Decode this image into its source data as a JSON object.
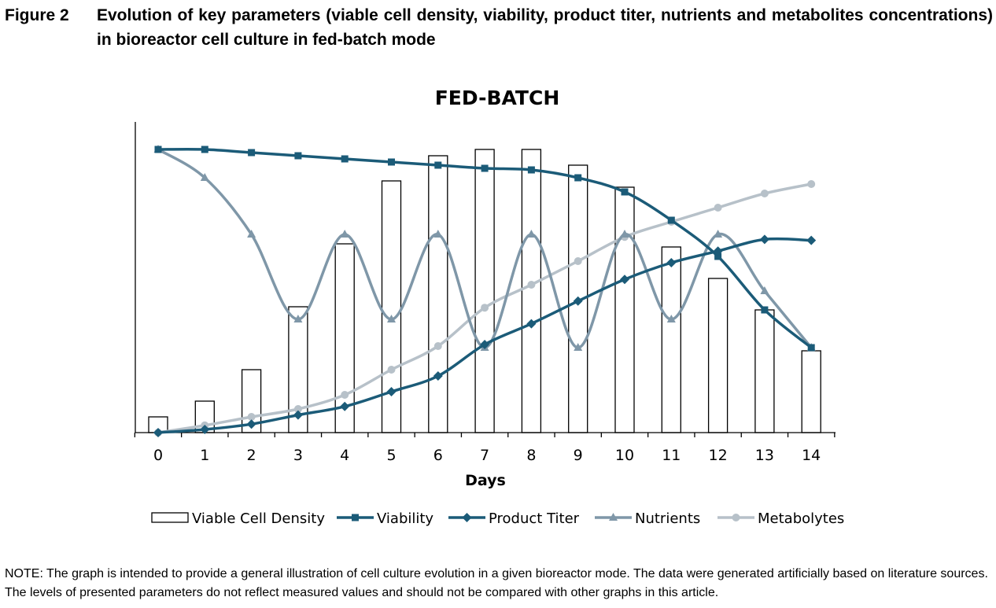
{
  "figure": {
    "label": "Figure 2",
    "caption": "Evolution of key parameters (viable cell density, viability, product titer, nutrients and metabolites concentrations) in bioreactor cell culture in fed-batch mode"
  },
  "note": "NOTE: The graph is intended to provide a general illustration of cell culture evolution in a given bioreactor mode. The data were generated artificially based on literature sources. The levels of presented parameters do not reflect measured values and should not be compared with other graphs in this article.",
  "chart_data": {
    "type": "bar+line",
    "title": "FED-BATCH",
    "xlabel": "Days",
    "ylabel": "",
    "categories": [
      "0",
      "1",
      "2",
      "3",
      "4",
      "5",
      "6",
      "7",
      "8",
      "9",
      "10",
      "11",
      "12",
      "13",
      "14"
    ],
    "ylim": [
      0,
      100
    ],
    "grid": false,
    "legend_position": "bottom",
    "series": [
      {
        "name": "Viable Cell Density",
        "type": "bar",
        "color": "#000000",
        "values": [
          5,
          10,
          20,
          40,
          60,
          80,
          88,
          90,
          90,
          85,
          78,
          59,
          49,
          39,
          26
        ]
      },
      {
        "name": "Viability",
        "type": "line",
        "marker": "square",
        "color": "#1b5b78",
        "values": [
          90,
          90,
          89,
          88,
          87,
          86,
          85,
          84,
          83.5,
          81,
          76.5,
          67.5,
          56,
          39,
          27
        ]
      },
      {
        "name": "Product Titer",
        "type": "line",
        "marker": "diamond",
        "color": "#1b5b78",
        "values": [
          0,
          1,
          2.7,
          5.6,
          8.3,
          13,
          18,
          28,
          34.6,
          41.8,
          48.7,
          54,
          57.7,
          61.4,
          61.1
        ]
      },
      {
        "name": "Nutrients",
        "type": "line",
        "marker": "triangle",
        "color": "#7f97a8",
        "values": [
          90,
          81,
          63,
          36,
          63,
          36,
          63,
          27,
          63,
          27,
          63,
          36,
          63,
          45,
          27
        ]
      },
      {
        "name": "Metabolytes",
        "type": "line",
        "marker": "circle",
        "color": "#b7c1c9",
        "values": [
          0,
          2.3,
          5,
          7.5,
          12,
          20,
          27.5,
          39.7,
          47,
          54.5,
          62.2,
          67,
          71.5,
          76,
          79
        ]
      }
    ]
  }
}
